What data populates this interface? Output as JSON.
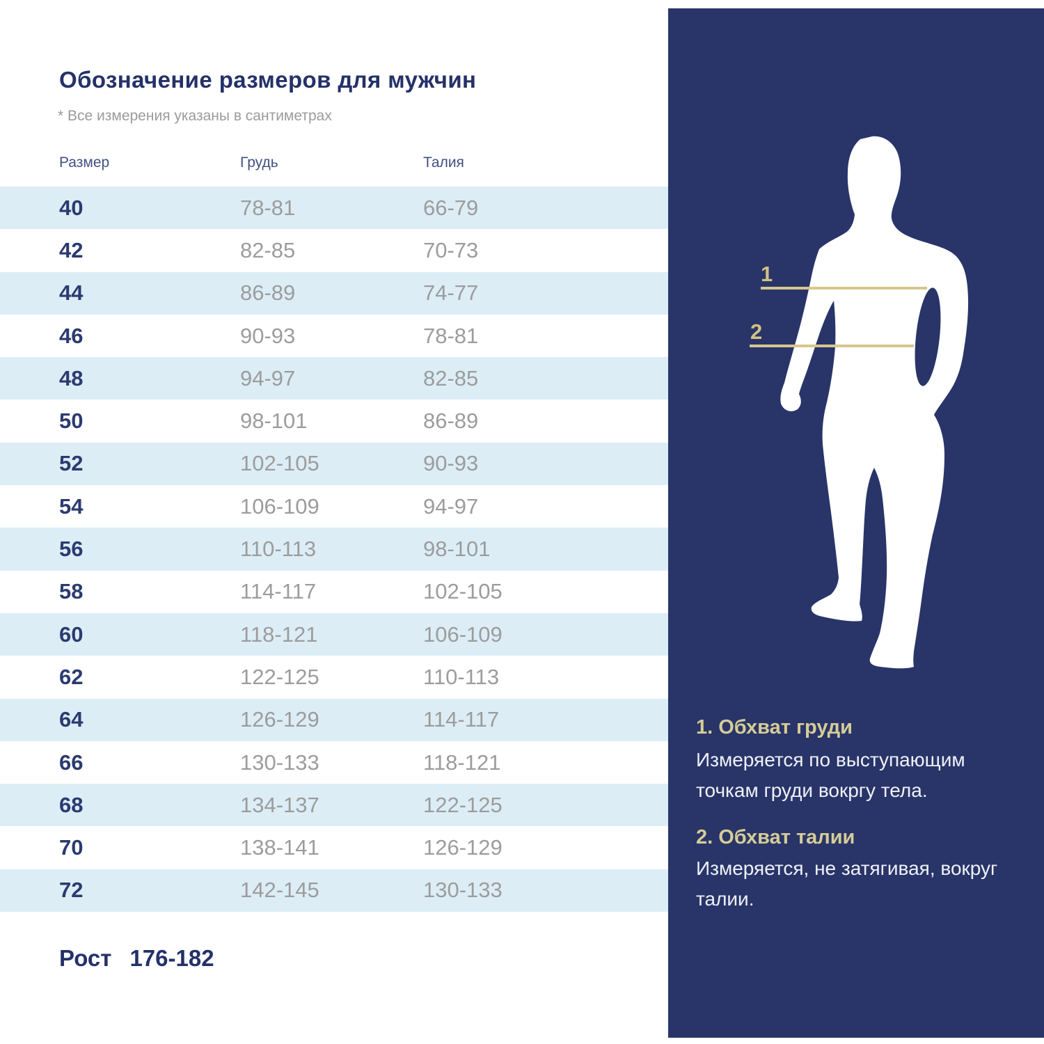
{
  "title": "Обозначение размеров для мужчин",
  "note": "* Все измерения указаны в сантиметрах",
  "table": {
    "columns": [
      "Размер",
      "Грудь",
      "Талия"
    ],
    "rows": [
      {
        "size": "40",
        "chest": "78-81",
        "waist": "66-79"
      },
      {
        "size": "42",
        "chest": "82-85",
        "waist": "70-73"
      },
      {
        "size": "44",
        "chest": "86-89",
        "waist": "74-77"
      },
      {
        "size": "46",
        "chest": "90-93",
        "waist": "78-81"
      },
      {
        "size": "48",
        "chest": "94-97",
        "waist": "82-85"
      },
      {
        "size": "50",
        "chest": "98-101",
        "waist": "86-89"
      },
      {
        "size": "52",
        "chest": "102-105",
        "waist": "90-93"
      },
      {
        "size": "54",
        "chest": "106-109",
        "waist": "94-97"
      },
      {
        "size": "56",
        "chest": "110-113",
        "waist": "98-101"
      },
      {
        "size": "58",
        "chest": "114-117",
        "waist": "102-105"
      },
      {
        "size": "60",
        "chest": "118-121",
        "waist": "106-109"
      },
      {
        "size": "62",
        "chest": "122-125",
        "waist": "110-113"
      },
      {
        "size": "64",
        "chest": "126-129",
        "waist": "114-117"
      },
      {
        "size": "66",
        "chest": "130-133",
        "waist": "118-121"
      },
      {
        "size": "68",
        "chest": "134-137",
        "waist": "122-125"
      },
      {
        "size": "70",
        "chest": "138-141",
        "waist": "126-129"
      },
      {
        "size": "72",
        "chest": "142-145",
        "waist": "130-133"
      }
    ]
  },
  "height_info": {
    "label": "Рост",
    "value": "176-182"
  },
  "figure": {
    "labels": [
      "1",
      "2"
    ]
  },
  "legend": [
    {
      "title": "1. Обхват груди",
      "text": "Измеряется по  выступающим точкам груди вокргу тела."
    },
    {
      "title": "2. Обхват талии",
      "text": "Измеряется, не затягивая, вокруг талии."
    }
  ],
  "colors": {
    "panel_navy": "#293569",
    "row_alt_blue": "#dcedf6",
    "title_navy": "#243169",
    "size_number_navy": "#2b3a70",
    "value_gray": "#9c9c9c",
    "accent_gold_heading": "#d6cc97",
    "accent_gold_line": "#d6c78c",
    "silhouette_white": "#ffffff"
  }
}
